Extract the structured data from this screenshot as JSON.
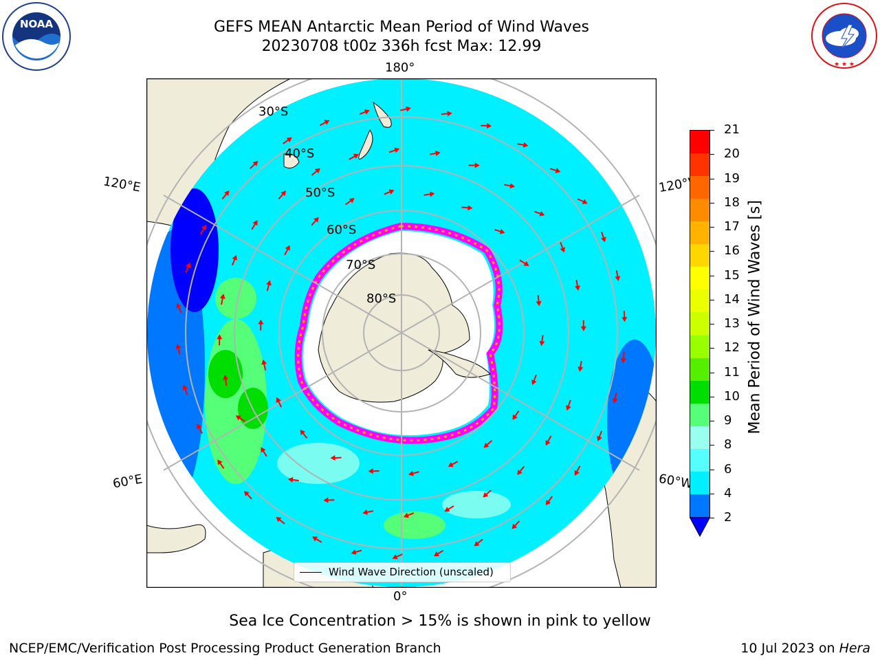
{
  "header": {
    "title_line1": "GEFS MEAN Antarctic Mean Period of Wind Waves",
    "title_line2": "20230708 t00z 336h fcst   Max: 12.99"
  },
  "logos": {
    "noaa_text": "NOAA",
    "noaa_ring_text": "NATIONAL OCEANIC AND ATMOSPHERIC ADMINISTRATION · U.S. DEPARTMENT OF COMMERCE",
    "nws_ring_text": "NATIONAL WEATHER SERVICE"
  },
  "map": {
    "projection": "south-polar-stereographic",
    "lon_labels": {
      "top": "180°",
      "bottom": "0°",
      "left_upper": "120°E",
      "left_lower": "60°E",
      "right_upper": "120°W",
      "right_lower": "60°W"
    },
    "lat_labels": [
      "30°S",
      "40°S",
      "50°S",
      "60°S",
      "70°S",
      "80°S"
    ],
    "legend_label": "Wind Wave Direction (unscaled)",
    "colors": {
      "land": "#efecd9",
      "ice": "#ffffff",
      "grid": "#b3b3b3",
      "arrow": "#ff0000",
      "ice_edge": [
        "#ff00ff",
        "#ffa500",
        "#ffff66"
      ]
    }
  },
  "colorbar": {
    "label": "Mean Period of Wind Waves [s]",
    "ticks": [
      "21",
      "20",
      "19",
      "18",
      "17",
      "16",
      "15",
      "14",
      "13",
      "12",
      "11",
      "10",
      "9",
      "8",
      "6",
      "4",
      "2"
    ],
    "colors_top_to_bottom": [
      "#ff0000",
      "#ff3300",
      "#ff6600",
      "#ff8c00",
      "#ffb300",
      "#ffd700",
      "#ffff00",
      "#eaff00",
      "#ccff00",
      "#99ff00",
      "#55ee00",
      "#00dd00",
      "#55ff77",
      "#99ffee",
      "#55ffff",
      "#00eeff",
      "#0077ff"
    ],
    "under_color": "#0000ff"
  },
  "footer": {
    "note": "Sea Ice Concentration > 15% is shown in pink to yellow",
    "credit": "NCEP/EMC/Verification Post Processing Product Generation Branch",
    "date_text": "10 Jul 2023 on ",
    "machine": "Hera"
  }
}
